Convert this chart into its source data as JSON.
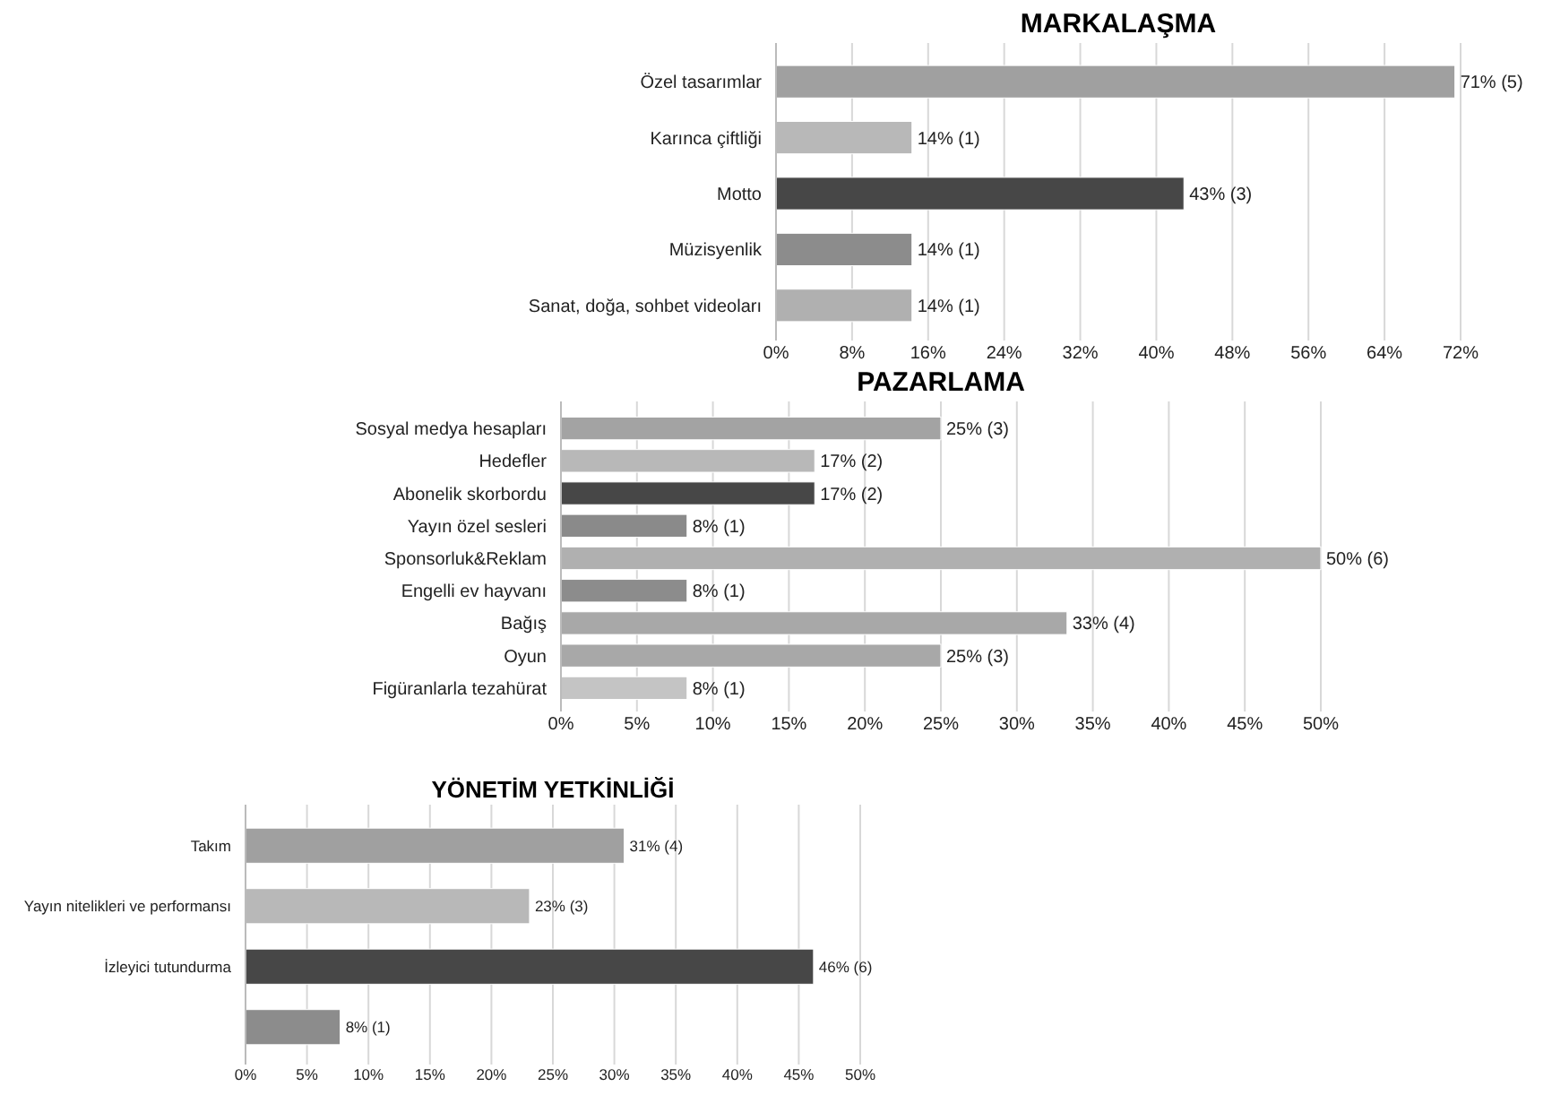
{
  "chart_data": [
    {
      "type": "bar",
      "orientation": "horizontal",
      "title": "MARKALAŞMA",
      "categories": [
        "Özel tasarımlar",
        "Karınca çiftliği",
        "Motto",
        "Müzisyenlik",
        "Sanat, doğa, sohbet videoları"
      ],
      "values": [
        71.4,
        14.3,
        42.9,
        14.3,
        14.3
      ],
      "colors": [
        "#a0a0a0",
        "#b8b8b8",
        "#474747",
        "#8c8c8c",
        "#b0b0b0"
      ],
      "value_labels": [
        "71% (5)",
        "14% (1)",
        "43% (3)",
        "14% (1)",
        "14% (1)"
      ],
      "xlim": [
        0,
        72
      ],
      "xticks": [
        {
          "value": 0,
          "label": "0%"
        },
        {
          "value": 8,
          "label": "8%"
        },
        {
          "value": 16,
          "label": "16%"
        },
        {
          "value": 24,
          "label": "24%"
        },
        {
          "value": 32,
          "label": "32%"
        },
        {
          "value": 40,
          "label": "40%"
        },
        {
          "value": 48,
          "label": "48%"
        },
        {
          "value": 56,
          "label": "56%"
        },
        {
          "value": 64,
          "label": "64%"
        },
        {
          "value": 72,
          "label": "72%"
        }
      ],
      "grid": "x"
    },
    {
      "type": "bar",
      "orientation": "horizontal",
      "title": "PAZARLAMA",
      "categories": [
        "Sosyal medya hesapları",
        "Hedefler",
        "Abonelik skorbordu",
        "Yayın özel sesleri",
        "Sponsorluk&Reklam",
        "Engelli ev hayvanı",
        "Bağış",
        "Oyun",
        "Figüranlarla tezahürat"
      ],
      "values": [
        25,
        16.7,
        16.7,
        8.3,
        50,
        8.3,
        33.3,
        25,
        8.3
      ],
      "colors": [
        "#a3a3a3",
        "#b8b8b8",
        "#474747",
        "#8a8a8a",
        "#b0b0b0",
        "#8c8c8c",
        "#a8a8a8",
        "#a8a8a8",
        "#c4c4c4"
      ],
      "value_labels": [
        "25% (3)",
        "17% (2)",
        "17% (2)",
        "8% (1)",
        "50% (6)",
        "8% (1)",
        "33% (4)",
        "25% (3)",
        "8% (1)"
      ],
      "xlim": [
        0,
        50
      ],
      "xticks": [
        {
          "value": 0,
          "label": "0%"
        },
        {
          "value": 5,
          "label": "5%"
        },
        {
          "value": 10,
          "label": "10%"
        },
        {
          "value": 15,
          "label": "15%"
        },
        {
          "value": 20,
          "label": "20%"
        },
        {
          "value": 25,
          "label": "25%"
        },
        {
          "value": 30,
          "label": "30%"
        },
        {
          "value": 35,
          "label": "35%"
        },
        {
          "value": 40,
          "label": "40%"
        },
        {
          "value": 45,
          "label": "45%"
        },
        {
          "value": 50,
          "label": "50%"
        }
      ],
      "grid": "x"
    },
    {
      "type": "bar",
      "orientation": "horizontal",
      "title": "YÖNETİM YETKİNLİĞİ",
      "categories": [
        "Takım",
        "Yayın nitelikleri ve performansı",
        "İzleyici tutundurma",
        null
      ],
      "values": [
        30.8,
        23.1,
        46.2,
        7.7
      ],
      "colors": [
        "#a0a0a0",
        "#b8b8b8",
        "#474747",
        "#8c8c8c"
      ],
      "value_labels": [
        "31% (4)",
        "23% (3)",
        "46% (6)",
        "8% (1)"
      ],
      "xlim": [
        0,
        50
      ],
      "xticks": [
        {
          "value": 0,
          "label": "0%"
        },
        {
          "value": 5,
          "label": "5%"
        },
        {
          "value": 10,
          "label": "10%"
        },
        {
          "value": 15,
          "label": "15%"
        },
        {
          "value": 20,
          "label": "20%"
        },
        {
          "value": 25,
          "label": "25%"
        },
        {
          "value": 30,
          "label": "30%"
        },
        {
          "value": 35,
          "label": "35%"
        },
        {
          "value": 40,
          "label": "40%"
        },
        {
          "value": 45,
          "label": "45%"
        },
        {
          "value": 50,
          "label": "50%"
        }
      ],
      "grid": "x"
    }
  ]
}
